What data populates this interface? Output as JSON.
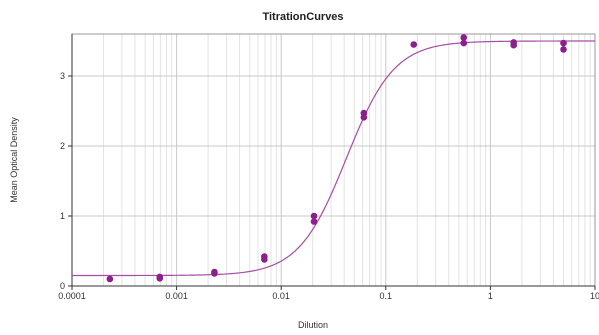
{
  "chart_data": {
    "type": "scatter",
    "title": "TitrationCurves",
    "xlabel": "Dilution",
    "ylabel": "Mean Optical Density",
    "x_scale": "log",
    "xlim": [
      0.0001,
      10
    ],
    "ylim": [
      0,
      3.6
    ],
    "x_ticks": [
      {
        "value": 0.0001,
        "label": "0.0001"
      },
      {
        "value": 0.001,
        "label": "0.001"
      },
      {
        "value": 0.01,
        "label": "0.01"
      },
      {
        "value": 0.1,
        "label": "0.1"
      },
      {
        "value": 1,
        "label": "1"
      },
      {
        "value": 10,
        "label": "10"
      }
    ],
    "y_ticks": [
      {
        "value": 0,
        "label": "0"
      },
      {
        "value": 1,
        "label": "1"
      },
      {
        "value": 2,
        "label": "2"
      },
      {
        "value": 3,
        "label": "3"
      }
    ],
    "grid": true,
    "legend": "none",
    "points": [
      {
        "x": 0.00023,
        "y": 0.1
      },
      {
        "x": 0.00069,
        "y": 0.13
      },
      {
        "x": 0.00069,
        "y": 0.11
      },
      {
        "x": 0.0023,
        "y": 0.2
      },
      {
        "x": 0.0023,
        "y": 0.18
      },
      {
        "x": 0.0069,
        "y": 0.42
      },
      {
        "x": 0.0069,
        "y": 0.38
      },
      {
        "x": 0.0206,
        "y": 1.0
      },
      {
        "x": 0.0206,
        "y": 0.92
      },
      {
        "x": 0.0617,
        "y": 2.47
      },
      {
        "x": 0.0617,
        "y": 2.41
      },
      {
        "x": 0.185,
        "y": 3.45
      },
      {
        "x": 0.556,
        "y": 3.55
      },
      {
        "x": 0.556,
        "y": 3.47
      },
      {
        "x": 1.67,
        "y": 3.48
      },
      {
        "x": 1.67,
        "y": 3.44
      },
      {
        "x": 5.0,
        "y": 3.47
      },
      {
        "x": 5.0,
        "y": 3.38
      }
    ],
    "fit": {
      "model": "4PL",
      "bottom": 0.15,
      "top": 3.5,
      "ec50": 0.042,
      "hill": 1.9
    },
    "colors": {
      "points": "#8b1f8b",
      "curve": "#a64ca6",
      "axis": "#333333",
      "grid_major": "#c8c8c8",
      "grid_minor": "#e3e3e3"
    }
  }
}
